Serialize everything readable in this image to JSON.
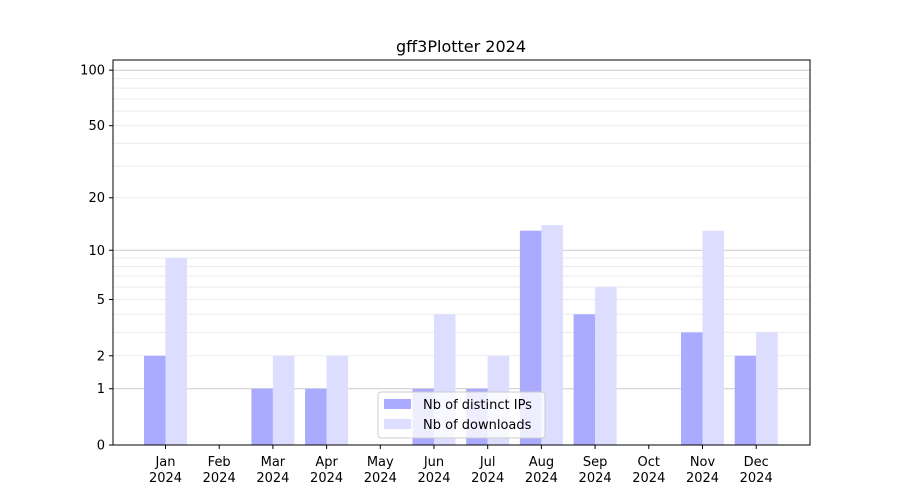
{
  "chart_data": {
    "type": "bar",
    "title": "gff3Plotter 2024",
    "xlabel": "",
    "ylabel": "",
    "yscale": "log(1+y) (symlog)",
    "ylim": [
      0,
      120
    ],
    "yticks": [
      0,
      1,
      2,
      5,
      10,
      20,
      50,
      100
    ],
    "grid": true,
    "legend_position": "bottom-center",
    "categories": [
      "Jan\n2024",
      "Feb\n2024",
      "Mar\n2024",
      "Apr\n2024",
      "May\n2024",
      "Jun\n2024",
      "Jul\n2024",
      "Aug\n2024",
      "Sep\n2024",
      "Oct\n2024",
      "Nov\n2024",
      "Dec\n2024"
    ],
    "series": [
      {
        "name": "Nb of distinct IPs",
        "color": "#aaaaff",
        "values": [
          2,
          0,
          1,
          1,
          0,
          1,
          1,
          13,
          4,
          0,
          3,
          2
        ]
      },
      {
        "name": "Nb of downloads",
        "color": "#ddddff",
        "values": [
          9,
          0,
          2,
          2,
          0,
          4,
          2,
          14,
          6,
          0,
          13,
          3
        ]
      }
    ]
  }
}
